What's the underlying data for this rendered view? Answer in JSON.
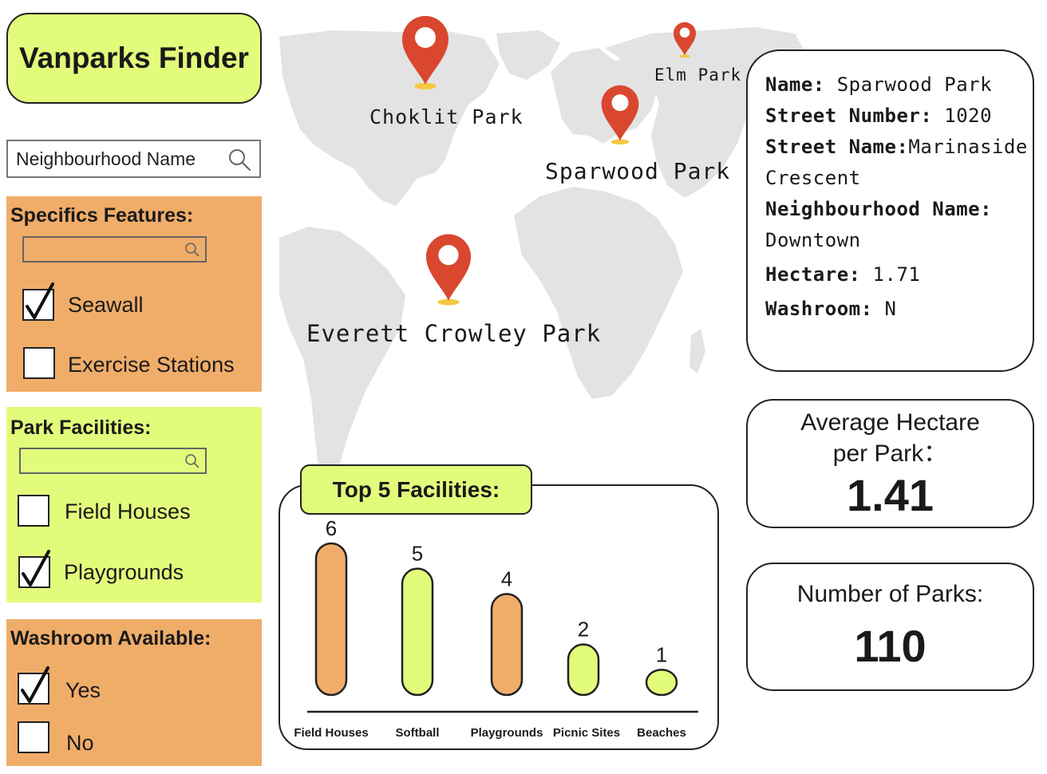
{
  "app": {
    "title": "Vanparks Finder"
  },
  "search": {
    "placeholder": "Neighbourhood Name"
  },
  "filters": {
    "specific_features": {
      "title": "Specifics Features:",
      "options": [
        {
          "label": "Seawall",
          "checked": true
        },
        {
          "label": "Exercise Stations",
          "checked": false
        }
      ]
    },
    "park_facilities": {
      "title": "Park Facilities:",
      "options": [
        {
          "label": "Field Houses",
          "checked": false
        },
        {
          "label": "Playgrounds",
          "checked": true
        }
      ]
    },
    "washroom": {
      "title": "Washroom Available:",
      "options": [
        {
          "label": "Yes",
          "checked": true
        },
        {
          "label": "No",
          "checked": false
        }
      ]
    }
  },
  "map": {
    "pins": [
      {
        "label": "Choklit Park"
      },
      {
        "label": "Elm Park"
      },
      {
        "label": "Sparwood Park"
      },
      {
        "label": "Everett Crowley Park"
      }
    ],
    "colors": {
      "land": "#e3e3e3",
      "pin": "#d9472f",
      "pin_base": "#f5c842"
    }
  },
  "park_info": {
    "name_label": "Name:",
    "name_value": "Sparwood Park",
    "street_number_label": "Street Number:",
    "street_number_value": "1020",
    "street_name_label": "Street Name:",
    "street_name_value_1": "Marinaside",
    "street_name_value_2": "Crescent",
    "neighbourhood_label": "Neighbourhood Name:",
    "neighbourhood_value": "Downtown",
    "hectare_label": "Hectare:",
    "hectare_value": "1.71",
    "washroom_label": "Washroom:",
    "washroom_value": "N"
  },
  "stats": {
    "avg_hectare_label_1": "Average Hectare",
    "avg_hectare_label_2": "per Park：",
    "avg_hectare_value": "1.41",
    "num_parks_label": "Number of Parks:",
    "num_parks_value": "110"
  },
  "chart_data": {
    "type": "bar",
    "title": "Top 5 Facilities:",
    "categories": [
      "Field Houses",
      "Softball",
      "Playgrounds",
      "Picnic Sites",
      "Beaches"
    ],
    "values": [
      6,
      5,
      4,
      2,
      1
    ],
    "colors": [
      "#f0ad6a",
      "#e2fb7b",
      "#f0ad6a",
      "#e2fb7b",
      "#e2fb7b"
    ]
  },
  "colors": {
    "lime": "#e2fb7b",
    "orange": "#f0ad6a",
    "ink": "#1a1a1a"
  }
}
